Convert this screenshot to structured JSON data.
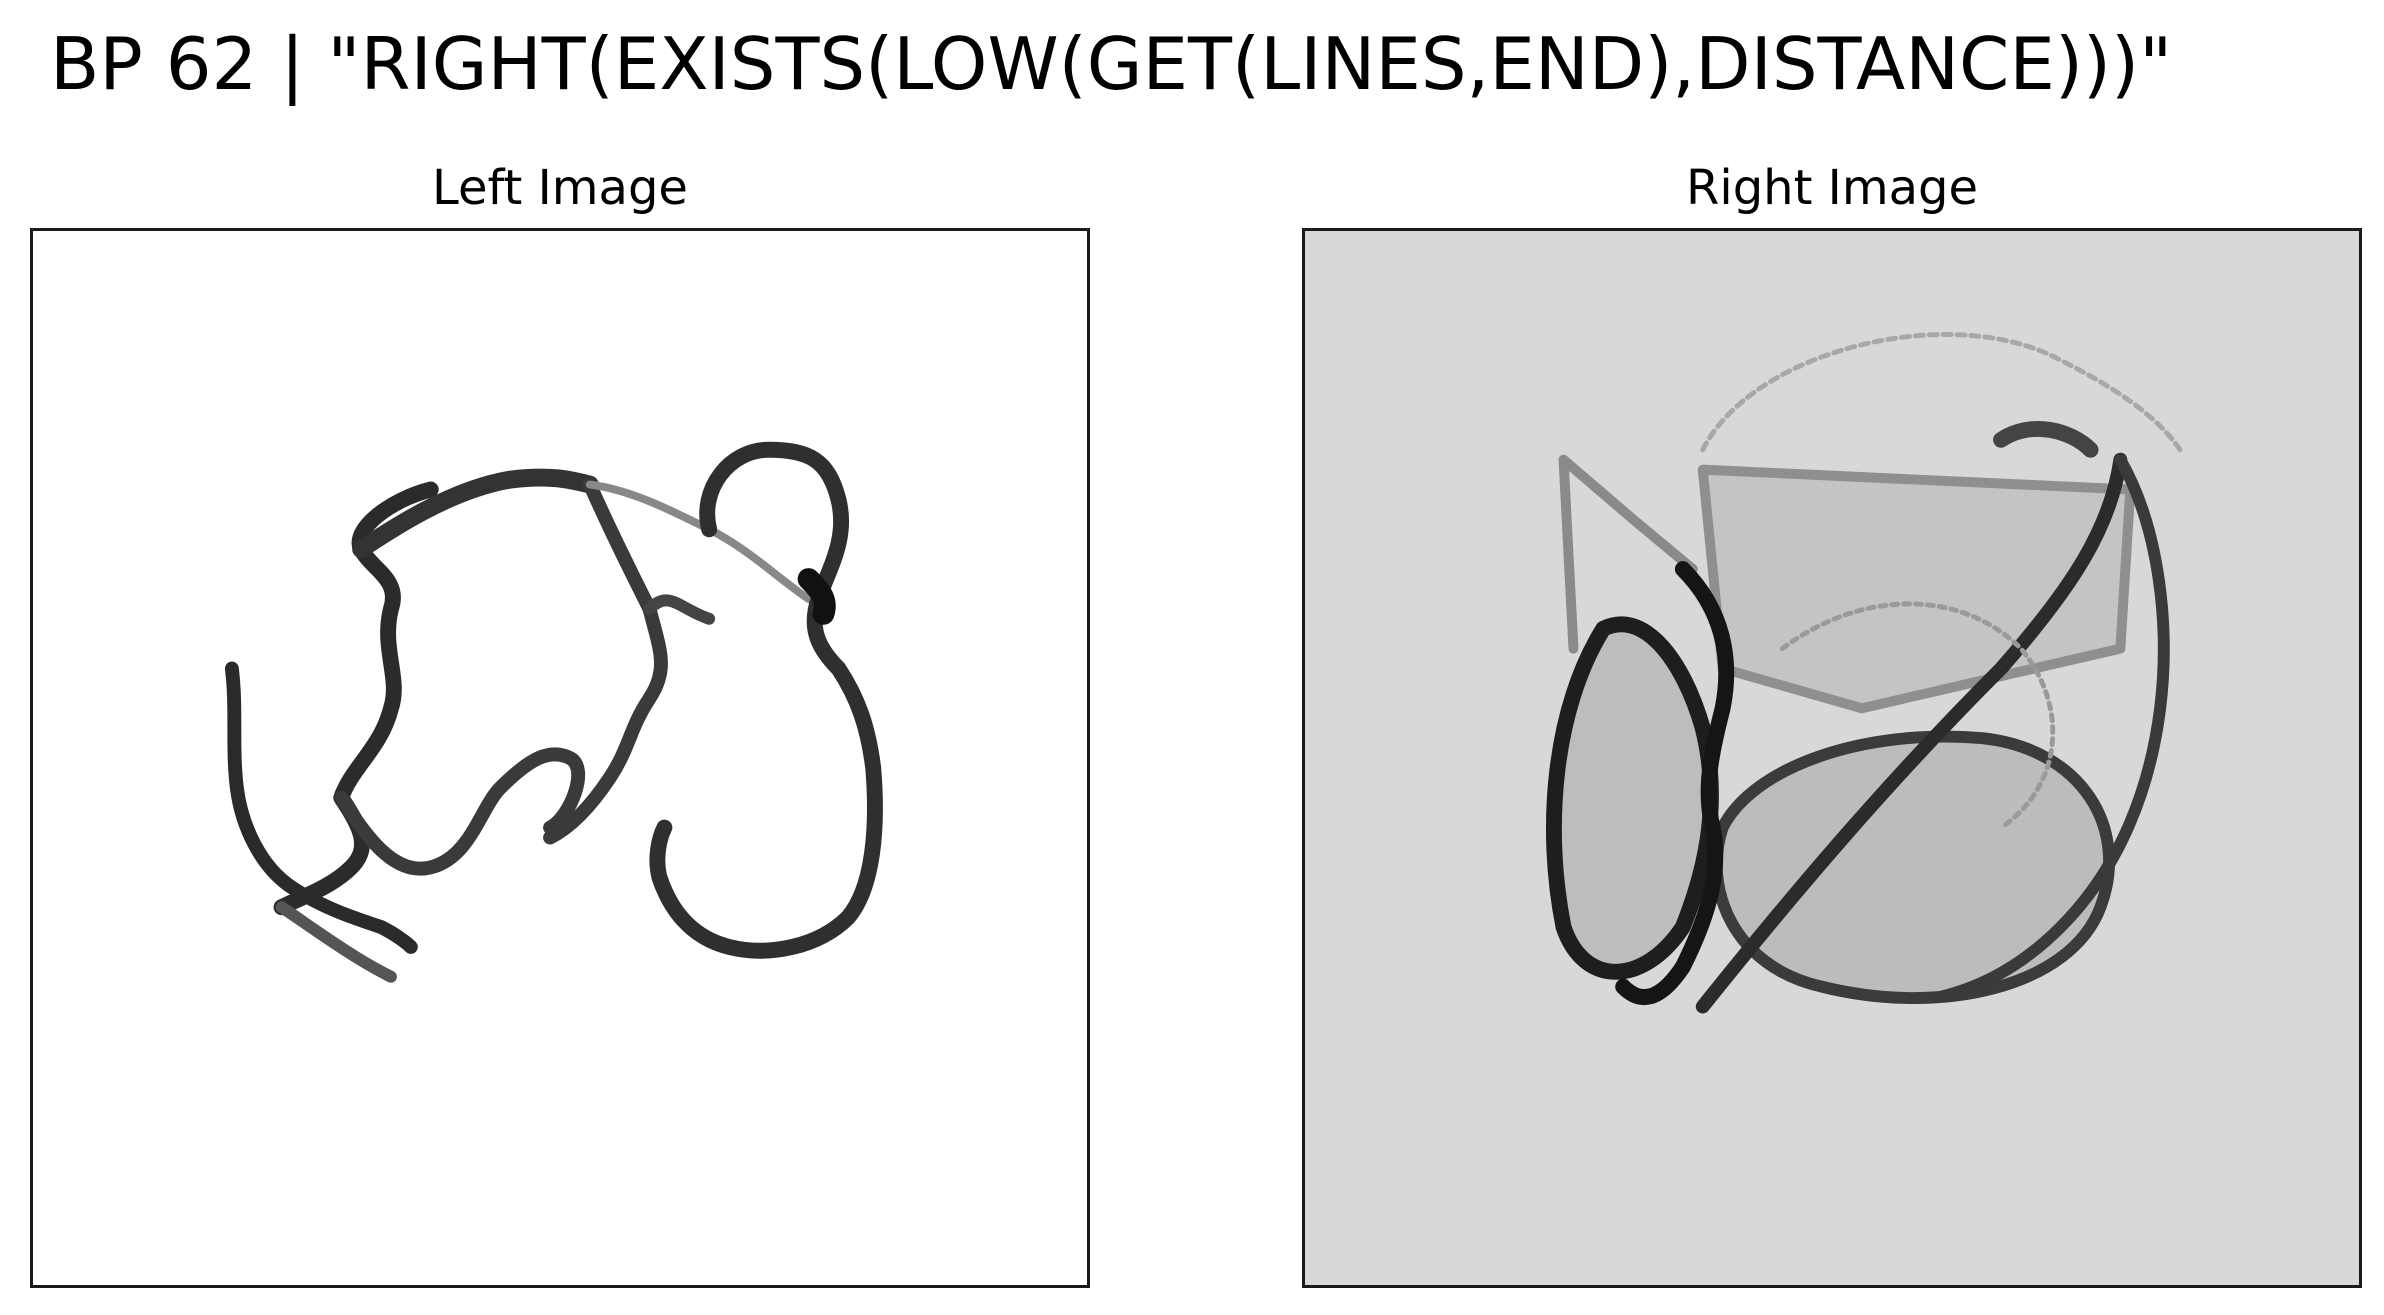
{
  "figure": {
    "title": "BP 62 | \"RIGHT(EXISTS(LOW(GET(LINES,END),DISTANCE)))\""
  },
  "panels": {
    "left": {
      "title": "Left Image",
      "background": "#ffffff",
      "ink": "#222222"
    },
    "right": {
      "title": "Right Image",
      "background": "#d8d8d8",
      "fill": "#bdbdbd",
      "ink": "#1e1e1e"
    }
  }
}
